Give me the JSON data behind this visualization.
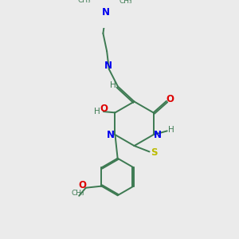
{
  "bg_color": "#ebebeb",
  "bond_color": "#3d7a52",
  "n_color": "#0000ee",
  "o_color": "#dd0000",
  "s_color": "#bbbb00",
  "h_color": "#3d7a52",
  "figsize": [
    3.0,
    3.0
  ],
  "dpi": 100,
  "xlim": [
    0,
    10
  ],
  "ylim": [
    0,
    10
  ]
}
